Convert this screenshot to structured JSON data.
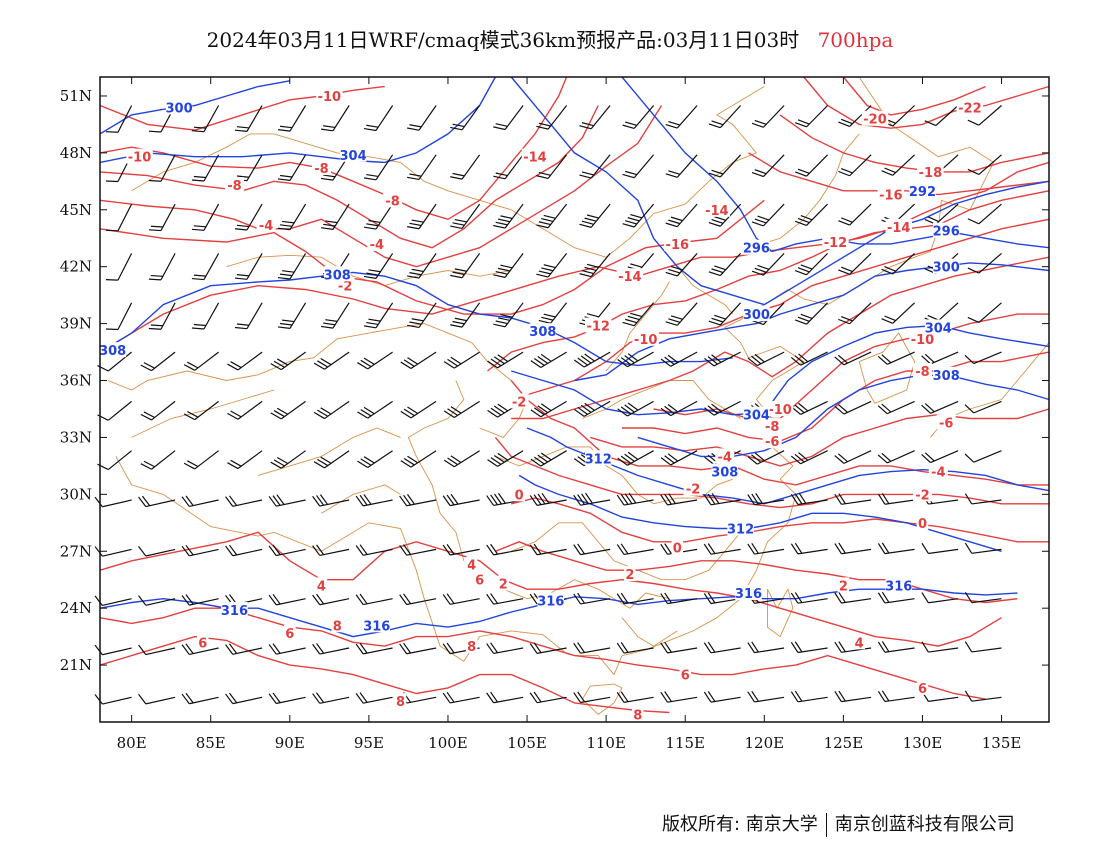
{
  "title": {
    "main": "2024年03月11日WRF/cmaq模式36km预报产品:03月11日03时",
    "level": "700hpa",
    "level_color": "#e0303a"
  },
  "map": {
    "lon_range": [
      78,
      138
    ],
    "lat_range": [
      18,
      52
    ],
    "lat_ticks": [
      "51N",
      "48N",
      "45N",
      "42N",
      "39N",
      "36N",
      "33N",
      "30N",
      "27N",
      "24N",
      "21N"
    ],
    "lat_tick_values": [
      51,
      48,
      45,
      42,
      39,
      36,
      33,
      30,
      27,
      24,
      21
    ],
    "lon_ticks": [
      "80E",
      "85E",
      "90E",
      "95E",
      "100E",
      "105E",
      "110E",
      "115E",
      "120E",
      "125E",
      "130E",
      "135E"
    ],
    "lon_tick_values": [
      80,
      85,
      90,
      95,
      100,
      105,
      110,
      115,
      120,
      125,
      130,
      135
    ],
    "colors": {
      "temperature_contour": "#e34040",
      "height_contour": "#2244dd",
      "boundary": "#d8924a",
      "wind_barb": "#111111"
    },
    "temperature_labels": [
      {
        "text": "-10",
        "lon": 92.5,
        "lat": 51.0
      },
      {
        "text": "-10",
        "lon": 80.5,
        "lat": 47.8
      },
      {
        "text": "-8",
        "lon": 92.0,
        "lat": 47.2
      },
      {
        "text": "-8",
        "lon": 86.5,
        "lat": 46.3
      },
      {
        "text": "-8",
        "lon": 96.5,
        "lat": 45.5
      },
      {
        "text": "-4",
        "lon": 88.5,
        "lat": 44.2
      },
      {
        "text": "-4",
        "lon": 95.5,
        "lat": 43.2
      },
      {
        "text": "-2",
        "lon": 93.5,
        "lat": 41.0
      },
      {
        "text": "-14",
        "lon": 105.5,
        "lat": 47.8
      },
      {
        "text": "-14",
        "lon": 117.0,
        "lat": 45.0
      },
      {
        "text": "-16",
        "lon": 114.5,
        "lat": 43.2
      },
      {
        "text": "-14",
        "lon": 111.5,
        "lat": 41.5
      },
      {
        "text": "-12",
        "lon": 109.5,
        "lat": 38.9
      },
      {
        "text": "-10",
        "lon": 112.5,
        "lat": 38.2
      },
      {
        "text": "-20",
        "lon": 127.0,
        "lat": 49.8
      },
      {
        "text": "-22",
        "lon": 133.0,
        "lat": 50.4
      },
      {
        "text": "-18",
        "lon": 130.5,
        "lat": 47.0
      },
      {
        "text": "-16",
        "lon": 128.0,
        "lat": 45.8
      },
      {
        "text": "-14",
        "lon": 128.5,
        "lat": 44.1
      },
      {
        "text": "-12",
        "lon": 124.5,
        "lat": 43.3
      },
      {
        "text": "-10",
        "lon": 130.0,
        "lat": 38.2
      },
      {
        "text": "-8",
        "lon": 130.0,
        "lat": 36.5
      },
      {
        "text": "-10",
        "lon": 121.0,
        "lat": 34.5
      },
      {
        "text": "-8",
        "lon": 120.5,
        "lat": 33.6
      },
      {
        "text": "-6",
        "lon": 120.5,
        "lat": 32.8
      },
      {
        "text": "-6",
        "lon": 131.5,
        "lat": 33.8
      },
      {
        "text": "-4",
        "lon": 117.5,
        "lat": 32.0
      },
      {
        "text": "-4",
        "lon": 131.0,
        "lat": 31.2
      },
      {
        "text": "-2",
        "lon": 104.5,
        "lat": 34.9
      },
      {
        "text": "-2",
        "lon": 115.5,
        "lat": 30.3
      },
      {
        "text": "-2",
        "lon": 130.0,
        "lat": 30.0
      },
      {
        "text": "0",
        "lon": 104.5,
        "lat": 30.0
      },
      {
        "text": "0",
        "lon": 114.5,
        "lat": 27.2
      },
      {
        "text": "0",
        "lon": 130.0,
        "lat": 28.5
      },
      {
        "text": "2",
        "lon": 103.5,
        "lat": 25.3
      },
      {
        "text": "2",
        "lon": 111.5,
        "lat": 25.8
      },
      {
        "text": "2",
        "lon": 125.0,
        "lat": 25.2
      },
      {
        "text": "4",
        "lon": 92.0,
        "lat": 25.2
      },
      {
        "text": "4",
        "lon": 101.5,
        "lat": 26.3
      },
      {
        "text": "4",
        "lon": 126.0,
        "lat": 22.2
      },
      {
        "text": "6",
        "lon": 102.0,
        "lat": 25.5
      },
      {
        "text": "6",
        "lon": 90.0,
        "lat": 22.7
      },
      {
        "text": "6",
        "lon": 84.5,
        "lat": 22.2
      },
      {
        "text": "6",
        "lon": 115.0,
        "lat": 20.5
      },
      {
        "text": "6",
        "lon": 130.0,
        "lat": 19.8
      },
      {
        "text": "8",
        "lon": 93.0,
        "lat": 23.1
      },
      {
        "text": "8",
        "lon": 101.5,
        "lat": 22.0
      },
      {
        "text": "8",
        "lon": 97.0,
        "lat": 19.1
      },
      {
        "text": "8",
        "lon": 112.0,
        "lat": 18.4
      }
    ],
    "height_labels": [
      {
        "text": "300",
        "lon": 83.0,
        "lat": 50.4
      },
      {
        "text": "304",
        "lon": 94.0,
        "lat": 47.9
      },
      {
        "text": "308",
        "lon": 93.0,
        "lat": 41.6
      },
      {
        "text": "308",
        "lon": 78.8,
        "lat": 37.6
      },
      {
        "text": "308",
        "lon": 106.0,
        "lat": 38.6
      },
      {
        "text": "296",
        "lon": 119.5,
        "lat": 43.0
      },
      {
        "text": "292",
        "lon": 130.0,
        "lat": 46.0
      },
      {
        "text": "296",
        "lon": 131.5,
        "lat": 43.9
      },
      {
        "text": "300",
        "lon": 131.5,
        "lat": 42.0
      },
      {
        "text": "300",
        "lon": 119.5,
        "lat": 39.5
      },
      {
        "text": "304",
        "lon": 131.0,
        "lat": 38.8
      },
      {
        "text": "308",
        "lon": 131.5,
        "lat": 36.3
      },
      {
        "text": "304",
        "lon": 119.5,
        "lat": 34.2
      },
      {
        "text": "312",
        "lon": 109.5,
        "lat": 31.9
      },
      {
        "text": "308",
        "lon": 117.5,
        "lat": 31.2
      },
      {
        "text": "312",
        "lon": 118.5,
        "lat": 28.2
      },
      {
        "text": "316",
        "lon": 86.5,
        "lat": 23.9
      },
      {
        "text": "316",
        "lon": 95.5,
        "lat": 23.1
      },
      {
        "text": "316",
        "lon": 106.5,
        "lat": 24.4
      },
      {
        "text": "316",
        "lon": 119.0,
        "lat": 24.8
      },
      {
        "text": "316",
        "lon": 128.5,
        "lat": 25.2
      }
    ]
  },
  "footer": {
    "left": "版权所有: 南京大学",
    "right": "南京创蓝科技有限公司"
  }
}
